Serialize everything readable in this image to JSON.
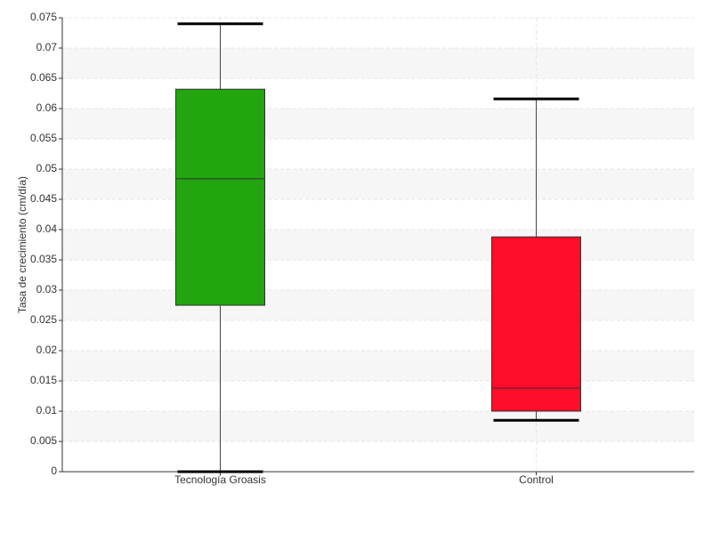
{
  "chart_data": {
    "type": "box",
    "ylabel": "Tasa de crecimiento (cm/día)",
    "categories": [
      "Tecnología Groasis",
      "Control"
    ],
    "boxes": [
      {
        "min": 0,
        "q1": 0.0275,
        "median": 0.0484,
        "q3": 0.0632,
        "max": 0.074,
        "color": "#22a50f"
      },
      {
        "min": 0.0085,
        "q1": 0.01,
        "median": 0.0138,
        "q3": 0.0388,
        "max": 0.0616,
        "color": "#ff0d2a"
      }
    ],
    "ylim": [
      0,
      0.075
    ],
    "yticks": [
      0,
      0.005,
      0.01,
      0.015,
      0.02,
      0.025,
      0.03,
      0.035,
      0.04,
      0.045,
      0.05,
      0.055,
      0.06,
      0.065,
      0.07,
      0.075
    ],
    "grid": true
  }
}
